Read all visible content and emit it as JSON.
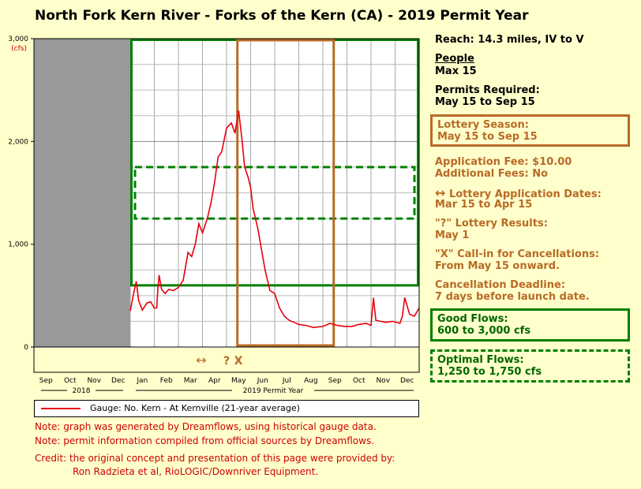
{
  "title": "North Fork Kern River - Forks of the Kern (CA) - 2019 Permit Year",
  "chart_data": {
    "type": "line",
    "title": "North Fork Kern River - Forks of the Kern (CA) - 2019 Permit Year",
    "ylabel_unit": "(cfs)",
    "ylim": [
      0,
      3000
    ],
    "yticks": [
      "3,000",
      "2,000",
      "1,000",
      "0"
    ],
    "yticks_values": [
      3000,
      2000,
      1000,
      0
    ],
    "months": [
      "Sep",
      "Oct",
      "Nov",
      "Dec",
      "Jan",
      "Feb",
      "Mar",
      "Apr",
      "May",
      "Jun",
      "Jul",
      "Aug",
      "Sep",
      "Oct",
      "Nov",
      "Dec"
    ],
    "year_labels": [
      "2018",
      "2019 Permit Year"
    ],
    "x_domain_months": [
      0,
      16
    ],
    "no_data_months": [
      0,
      4
    ],
    "grid": true,
    "series": [
      {
        "name": "Gauge: No. Kern - At Kernville (21-year average)",
        "color": "#e8000b",
        "x": [
          4.0,
          4.12,
          4.25,
          4.35,
          4.5,
          4.7,
          4.85,
          5.0,
          5.1,
          5.15,
          5.2,
          5.3,
          5.45,
          5.6,
          5.8,
          6.0,
          6.2,
          6.4,
          6.55,
          6.7,
          6.85,
          7.0,
          7.2,
          7.35,
          7.5,
          7.65,
          7.8,
          8.0,
          8.2,
          8.35,
          8.5,
          8.65,
          8.75,
          8.9,
          9.0,
          9.1,
          9.2,
          9.3,
          9.45,
          9.6,
          9.8,
          10.0,
          10.2,
          10.4,
          10.6,
          10.8,
          11.0,
          11.3,
          11.6,
          12.0,
          12.3,
          12.6,
          12.9,
          13.2,
          13.5,
          13.8,
          14.0,
          14.1,
          14.2,
          14.4,
          14.6,
          14.9,
          15.2,
          15.3,
          15.4,
          15.6,
          15.8,
          16.0
        ],
        "y": [
          350,
          500,
          640,
          450,
          360,
          430,
          440,
          380,
          380,
          580,
          700,
          560,
          520,
          560,
          550,
          580,
          650,
          920,
          880,
          1000,
          1200,
          1110,
          1250,
          1400,
          1600,
          1850,
          1900,
          2130,
          2180,
          2080,
          2300,
          2000,
          1750,
          1650,
          1550,
          1350,
          1250,
          1150,
          950,
          750,
          550,
          520,
          380,
          300,
          260,
          240,
          220,
          210,
          190,
          200,
          230,
          210,
          200,
          200,
          220,
          230,
          210,
          480,
          260,
          250,
          240,
          250,
          230,
          300,
          480,
          320,
          300,
          380
        ]
      }
    ],
    "regions": [
      {
        "label": "Good Flows: 600 to 3,000 cfs",
        "y_range": [
          600,
          3000
        ],
        "x_range": [
          4,
          16
        ],
        "color": "#008000",
        "style": "solid"
      },
      {
        "label": "Optimal Flows: 1,250 to 1,750 cfs",
        "y_range": [
          1250,
          1750
        ],
        "x_range": [
          4,
          16
        ],
        "color": "#008000",
        "style": "dashed"
      },
      {
        "label": "Lottery Season: May 15 to Sep 15",
        "x_range": [
          8.45,
          12.45
        ],
        "color": "#b86a26",
        "style": "solid"
      }
    ],
    "markers": {
      "arrow": "↔",
      "question": "?",
      "cross": "X"
    }
  },
  "panel": {
    "reach": "Reach: 14.3 miles, IV to V",
    "people_header": "People",
    "people_value": "Max 15",
    "permits_header": "Permits Required:",
    "permits_value": "May 15 to Sep 15",
    "lottery_season_header": "Lottery Season:",
    "lottery_season_value": "May 15 to Sep 15",
    "app_fee": "Application Fee: $10.00",
    "add_fees": "Additional Fees: No",
    "app_dates_header": "Lottery Application Dates:",
    "app_dates_value": "Mar 15 to Apr 15",
    "results_header": "\"?\" Lottery Results:",
    "results_value": "May 1",
    "callin_header": "\"X\" Call-in for Cancellations:",
    "callin_value": "From May 15 onward.",
    "cancel_header": "Cancellation Deadline:",
    "cancel_value": "7 days before launch date.",
    "good_header": "Good Flows:",
    "good_value": "600 to 3,000 cfs",
    "optimal_header": "Optimal Flows:",
    "optimal_value": "1,250 to 1,750 cfs"
  },
  "legend": {
    "label": "Gauge: No. Kern - At Kernville (21-year average)"
  },
  "notes": {
    "line1": "Note: graph was generated by Dreamflows, using historical gauge data.",
    "line2": "Note: permit information compiled from official sources by Dreamflows.",
    "credit1": "Credit: the original concept and presentation of this page were provided by:",
    "credit2": "Ron Radzieta et al, RioLOGIC/Downriver Equipment."
  },
  "colors": {
    "background": "#ffffcc",
    "flow_line": "#e8000b",
    "good_green": "#008000",
    "lottery_brown": "#b86a26",
    "no_data_gray": "#999999",
    "notes_red": "#cc0000"
  }
}
